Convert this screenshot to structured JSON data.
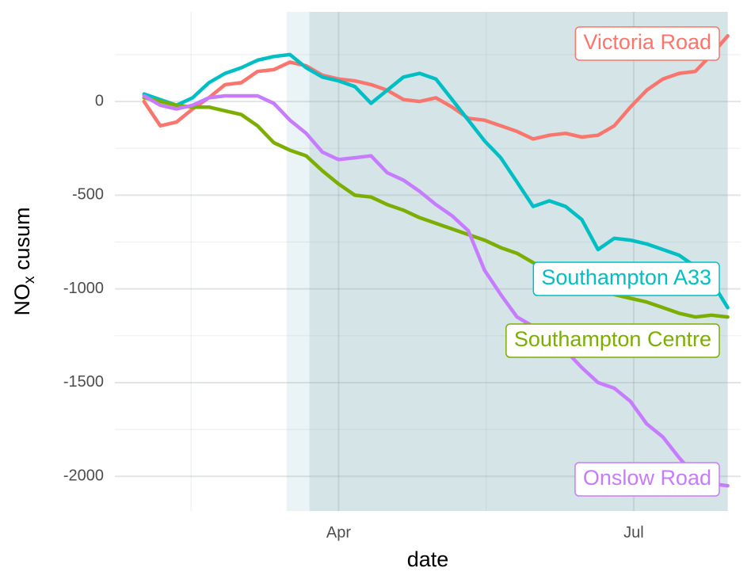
{
  "chart_data": {
    "type": "line",
    "xlabel": "date",
    "ylabel": [
      "NO",
      "x",
      " cusum"
    ],
    "x": [
      31,
      36,
      41,
      46,
      51,
      56,
      61,
      66,
      71,
      76,
      81,
      86,
      91,
      96,
      101,
      106,
      111,
      116,
      121,
      126,
      131,
      136,
      141,
      146,
      151,
      156,
      161,
      166,
      171,
      176,
      181,
      186,
      191,
      196,
      201,
      206,
      211
    ],
    "xlim": [
      22,
      215
    ],
    "xticks": [
      {
        "value": 91,
        "label": "Apr"
      },
      {
        "value": 182,
        "label": "Jul"
      }
    ],
    "ylim": [
      -2185,
      478
    ],
    "yticks": [
      -2000,
      -1500,
      -1000,
      -500,
      0
    ],
    "grid": true,
    "spans": [
      {
        "start": 75,
        "end": 211,
        "color": "#eaf3f6"
      },
      {
        "start": 82,
        "end": 211,
        "color": "#d5e5e7"
      }
    ],
    "series": [
      {
        "name": "Victoria Road",
        "color": "#f8766d",
        "values": [
          0,
          -130,
          -110,
          -40,
          20,
          90,
          100,
          160,
          170,
          210,
          190,
          140,
          120,
          110,
          90,
          60,
          10,
          0,
          20,
          -30,
          -90,
          -100,
          -130,
          -160,
          -200,
          -180,
          -170,
          -190,
          -180,
          -130,
          -30,
          60,
          120,
          150,
          160,
          250,
          350
        ]
      },
      {
        "name": "Southampton A33",
        "color": "#00bfc4",
        "values": [
          40,
          10,
          -20,
          20,
          100,
          150,
          180,
          220,
          240,
          250,
          180,
          130,
          110,
          80,
          -10,
          60,
          130,
          150,
          120,
          10,
          -100,
          -210,
          -300,
          -430,
          -560,
          -530,
          -560,
          -630,
          -790,
          -730,
          -740,
          -760,
          -790,
          -820,
          -880,
          -960,
          -1100
        ]
      },
      {
        "name": "Southampton Centre",
        "color": "#7cae00",
        "values": [
          20,
          0,
          -20,
          -30,
          -30,
          -50,
          -70,
          -130,
          -220,
          -260,
          -290,
          -370,
          -440,
          -500,
          -510,
          -550,
          -580,
          -620,
          -650,
          -680,
          -710,
          -740,
          -780,
          -810,
          -860,
          -900,
          -930,
          -970,
          -1000,
          -1030,
          -1050,
          -1070,
          -1100,
          -1130,
          -1150,
          -1140,
          -1150
        ]
      },
      {
        "name": "Onslow Road",
        "color": "#c77cff",
        "values": [
          30,
          -20,
          -40,
          -20,
          20,
          30,
          30,
          30,
          -10,
          -100,
          -170,
          -270,
          -310,
          -300,
          -290,
          -380,
          -420,
          -480,
          -550,
          -610,
          -690,
          -900,
          -1030,
          -1150,
          -1200,
          -1260,
          -1330,
          -1420,
          -1500,
          -1530,
          -1600,
          -1720,
          -1790,
          -1900,
          -2000,
          -2040,
          -2050
        ]
      }
    ]
  }
}
